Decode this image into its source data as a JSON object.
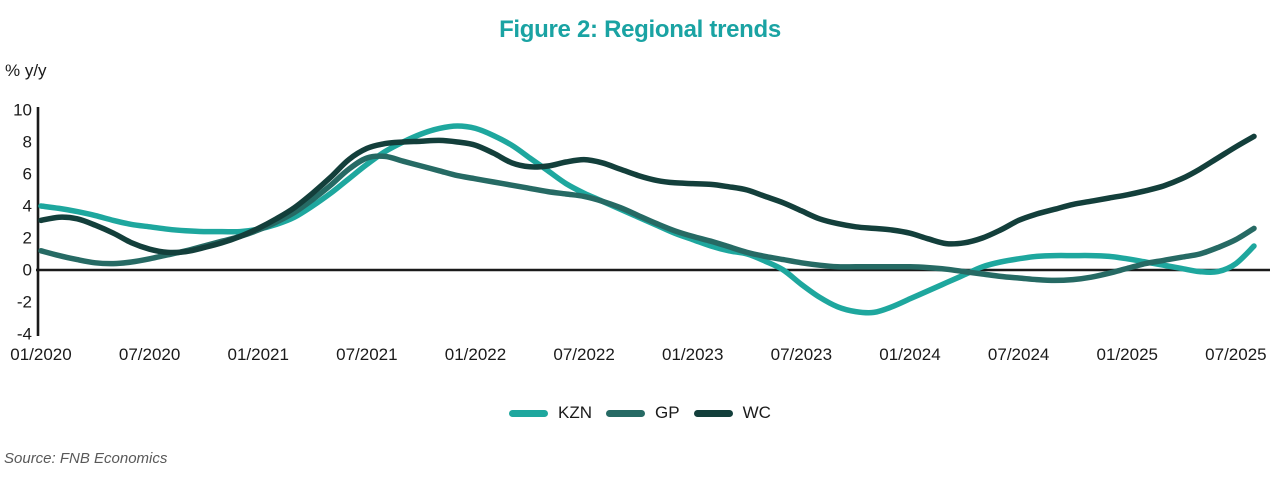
{
  "title": "Figure 2: Regional trends",
  "title_color": "#1aa3a3",
  "unit_label": "% y/y",
  "source": "Source: FNB Economics",
  "chart_data": {
    "type": "line",
    "title": "Figure 2: Regional trends",
    "ylabel": "% y/y",
    "xlabel": "",
    "ylim": [
      -4,
      10
    ],
    "grid": false,
    "zero_baseline": true,
    "legend_position": "bottom-center",
    "y_ticks": [
      10,
      8,
      6,
      4,
      2,
      0,
      -2,
      -4
    ],
    "x_tick_labels": [
      "01/2020",
      "07/2020",
      "01/2021",
      "07/2021",
      "01/2022",
      "07/2022",
      "01/2023",
      "07/2023",
      "01/2024",
      "07/2024",
      "01/2025",
      "07/2025"
    ],
    "x_months": [
      "01/2020",
      "02/2020",
      "03/2020",
      "04/2020",
      "05/2020",
      "06/2020",
      "07/2020",
      "08/2020",
      "09/2020",
      "10/2020",
      "11/2020",
      "12/2020",
      "01/2021",
      "02/2021",
      "03/2021",
      "04/2021",
      "05/2021",
      "06/2021",
      "07/2021",
      "08/2021",
      "09/2021",
      "10/2021",
      "11/2021",
      "12/2021",
      "01/2022",
      "02/2022",
      "03/2022",
      "04/2022",
      "05/2022",
      "06/2022",
      "07/2022",
      "08/2022",
      "09/2022",
      "10/2022",
      "11/2022",
      "12/2022",
      "01/2023",
      "02/2023",
      "03/2023",
      "04/2023",
      "05/2023",
      "06/2023",
      "07/2023",
      "08/2023",
      "09/2023",
      "10/2023",
      "11/2023",
      "12/2023",
      "01/2024",
      "02/2024",
      "03/2024",
      "04/2024",
      "05/2024",
      "06/2024",
      "07/2024",
      "08/2024",
      "09/2024",
      "10/2024",
      "11/2024",
      "12/2024",
      "01/2025",
      "02/2025",
      "03/2025",
      "04/2025",
      "05/2025",
      "06/2025",
      "07/2025",
      "08/2025"
    ],
    "series": [
      {
        "name": "KZN",
        "color": "#1ea79e",
        "values": [
          4.0,
          3.85,
          3.65,
          3.4,
          3.1,
          2.85,
          2.7,
          2.55,
          2.45,
          2.4,
          2.4,
          2.4,
          2.55,
          2.85,
          3.3,
          4.0,
          4.8,
          5.7,
          6.6,
          7.4,
          8.0,
          8.5,
          8.85,
          9.0,
          8.85,
          8.4,
          7.8,
          7.0,
          6.2,
          5.4,
          4.8,
          4.3,
          3.8,
          3.3,
          2.8,
          2.3,
          1.9,
          1.5,
          1.2,
          1.0,
          0.55,
          0.0,
          -0.9,
          -1.7,
          -2.3,
          -2.6,
          -2.65,
          -2.3,
          -1.8,
          -1.3,
          -0.8,
          -0.3,
          0.2,
          0.5,
          0.7,
          0.85,
          0.9,
          0.9,
          0.9,
          0.85,
          0.7,
          0.5,
          0.3,
          0.1,
          -0.1,
          -0.1,
          0.4,
          1.5
        ]
      },
      {
        "name": "GP",
        "color": "#266a64",
        "values": [
          1.2,
          0.9,
          0.65,
          0.45,
          0.4,
          0.5,
          0.7,
          0.95,
          1.2,
          1.5,
          1.8,
          2.1,
          2.5,
          3.0,
          3.6,
          4.4,
          5.3,
          6.3,
          7.0,
          7.1,
          6.8,
          6.5,
          6.2,
          5.9,
          5.7,
          5.5,
          5.3,
          5.1,
          4.9,
          4.75,
          4.6,
          4.3,
          3.9,
          3.4,
          2.9,
          2.45,
          2.1,
          1.8,
          1.45,
          1.1,
          0.85,
          0.65,
          0.45,
          0.3,
          0.2,
          0.2,
          0.2,
          0.2,
          0.2,
          0.15,
          0.05,
          -0.1,
          -0.25,
          -0.4,
          -0.5,
          -0.6,
          -0.65,
          -0.6,
          -0.45,
          -0.2,
          0.1,
          0.4,
          0.6,
          0.8,
          1.0,
          1.4,
          1.9,
          2.6
        ]
      },
      {
        "name": "WC",
        "color": "#133f3b",
        "values": [
          3.1,
          3.3,
          3.2,
          2.8,
          2.3,
          1.7,
          1.3,
          1.1,
          1.15,
          1.4,
          1.7,
          2.1,
          2.6,
          3.2,
          3.9,
          4.8,
          5.8,
          6.9,
          7.6,
          7.9,
          8.0,
          8.05,
          8.1,
          8.0,
          7.8,
          7.3,
          6.7,
          6.45,
          6.5,
          6.75,
          6.9,
          6.7,
          6.3,
          5.9,
          5.6,
          5.45,
          5.4,
          5.35,
          5.2,
          5.0,
          4.6,
          4.2,
          3.7,
          3.2,
          2.9,
          2.7,
          2.6,
          2.5,
          2.3,
          1.95,
          1.65,
          1.7,
          2.0,
          2.5,
          3.1,
          3.5,
          3.8,
          4.1,
          4.3,
          4.5,
          4.7,
          4.95,
          5.25,
          5.7,
          6.3,
          7.0,
          7.7,
          8.35
        ]
      }
    ]
  }
}
